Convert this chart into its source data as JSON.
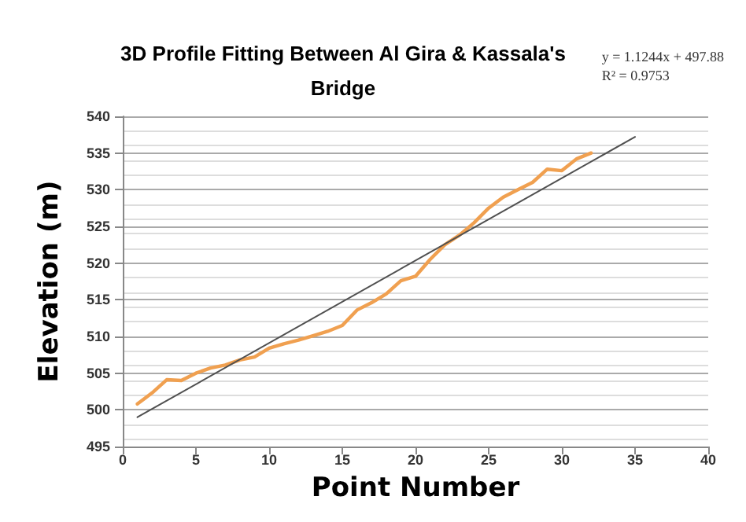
{
  "chart_data": {
    "type": "line",
    "title": "3D Profile Fitting Between Al Gira & Kassala's\nBridge",
    "xlabel": "Point Number",
    "ylabel": "Elevation (m)",
    "annotations": [
      "y = 1.1244x + 497.88",
      "R² = 0.9753"
    ],
    "series": [
      {
        "color": "#f0a050",
        "x": [
          1,
          2,
          3,
          4,
          5,
          6,
          7,
          8,
          9,
          10,
          11,
          12,
          13,
          14,
          15,
          16,
          17,
          18,
          19,
          20,
          21,
          22,
          23,
          24,
          25,
          26,
          27,
          28,
          29,
          30,
          31,
          32
        ],
        "values": [
          500.8,
          502.3,
          504.1,
          504.0,
          505.0,
          505.7,
          506.1,
          506.8,
          507.2,
          508.4,
          509.0,
          509.5,
          510.1,
          510.7,
          511.5,
          513.6,
          514.6,
          515.8,
          517.6,
          518.2,
          520.5,
          522.5,
          523.8,
          525.5,
          527.5,
          529.0,
          530.0,
          531.0,
          532.8,
          532.6,
          534.2,
          535.0
        ]
      },
      {
        "color": "#505050",
        "x": [
          1,
          35
        ],
        "values": [
          499.0,
          537.2
        ]
      }
    ],
    "xlim": [
      0,
      40
    ],
    "xticks": [
      0,
      5,
      10,
      15,
      20,
      25,
      30,
      35,
      40
    ],
    "ylim": [
      495,
      540
    ],
    "yticks": [
      495,
      500,
      505,
      510,
      515,
      520,
      525,
      530,
      535,
      540
    ],
    "grid": "y",
    "marker": "none",
    "line_style": "solid"
  }
}
